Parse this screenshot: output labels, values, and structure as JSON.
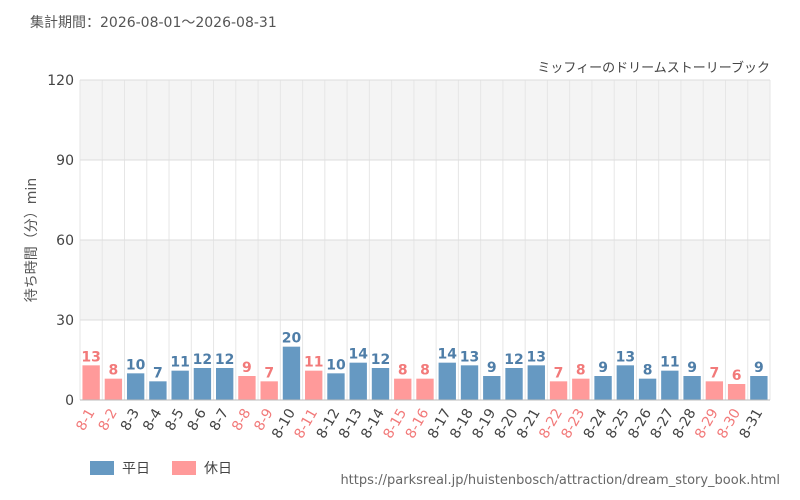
{
  "period_text": "集計期間：2026-08-01～2026-08-31",
  "source_url": "https://parksreal.jp/huistenbosch/attraction/dream_story_book.html",
  "colors": {
    "weekday": "#6699c2",
    "holiday": "#ff9a9a",
    "weekday_text": "#4f7ea8",
    "holiday_text": "#f27a7a"
  },
  "legend": [
    {
      "label": "平日",
      "key": "weekday"
    },
    {
      "label": "休日",
      "key": "holiday"
    }
  ],
  "chart_data": {
    "type": "bar",
    "title": "ミッフィーのドリームストーリーブック",
    "ylabel": "待ち時間（分）min",
    "xlabel": "",
    "ylim": [
      0,
      120
    ],
    "yticks": [
      0,
      30,
      60,
      90,
      120
    ],
    "grid": true,
    "legend_position": "bottom-left",
    "categories": [
      "8-1",
      "8-2",
      "8-3",
      "8-4",
      "8-5",
      "8-6",
      "8-7",
      "8-8",
      "8-9",
      "8-10",
      "8-11",
      "8-12",
      "8-13",
      "8-14",
      "8-15",
      "8-16",
      "8-17",
      "8-18",
      "8-19",
      "8-20",
      "8-21",
      "8-22",
      "8-23",
      "8-24",
      "8-25",
      "8-26",
      "8-27",
      "8-28",
      "8-29",
      "8-30",
      "8-31"
    ],
    "values": [
      13,
      8,
      10,
      7,
      11,
      12,
      12,
      9,
      7,
      20,
      11,
      10,
      14,
      12,
      8,
      8,
      14,
      13,
      9,
      12,
      13,
      7,
      8,
      9,
      13,
      8,
      11,
      9,
      7,
      6,
      9
    ],
    "day_types": [
      "holiday",
      "holiday",
      "weekday",
      "weekday",
      "weekday",
      "weekday",
      "weekday",
      "holiday",
      "holiday",
      "weekday",
      "holiday",
      "weekday",
      "weekday",
      "weekday",
      "holiday",
      "holiday",
      "weekday",
      "weekday",
      "weekday",
      "weekday",
      "weekday",
      "holiday",
      "holiday",
      "weekday",
      "weekday",
      "weekday",
      "weekday",
      "weekday",
      "holiday",
      "holiday",
      "weekday"
    ],
    "series": [
      {
        "name": "平日",
        "key": "weekday"
      },
      {
        "name": "休日",
        "key": "holiday"
      }
    ]
  }
}
